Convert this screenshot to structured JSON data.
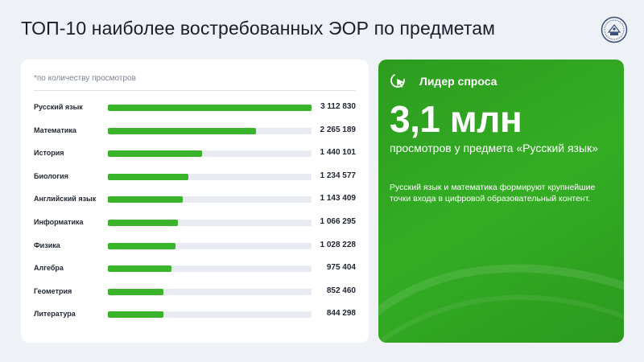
{
  "header": {
    "title": "ТОП-10 наиболее востребованных ЭОР по предметам",
    "emblem_icon": "ministry-emblem-icon"
  },
  "chart_note": "*по количеству просмотров",
  "chart_data": {
    "type": "bar",
    "orientation": "horizontal",
    "categories": [
      "Русский язык",
      "Математика",
      "История",
      "Биология",
      "Английский язык",
      "Информатика",
      "Физика",
      "Алгебра",
      "Геометрия",
      "Литература"
    ],
    "values": [
      3112830,
      2265189,
      1440101,
      1234577,
      1143409,
      1066295,
      1028228,
      975404,
      852460,
      844298
    ],
    "value_labels": [
      "3 112 830",
      "2 265 189",
      "1 440 101",
      "1 234 577",
      "1 143 409",
      "1 066 295",
      "1 028 228",
      "975 404",
      "852 460",
      "844 298"
    ],
    "xlim": [
      0,
      3112830
    ],
    "title": "",
    "xlabel": "",
    "ylabel": "",
    "grid": false,
    "colors": {
      "bar": "#3ab52b",
      "track": "#e8ecf2"
    }
  },
  "leader": {
    "icon": "cursor-click-icon",
    "title": "Лидер спроса",
    "big_number": "3,1 млн",
    "caption": "просмотров у предмета «Русский язык»",
    "description": "Русский язык и математика формируют крупнейшие точки входа в цифровой образовательный контент."
  },
  "colors": {
    "accent": "#3ab52b",
    "card_green": "#2d9c1f",
    "background": "#eef1f5"
  }
}
